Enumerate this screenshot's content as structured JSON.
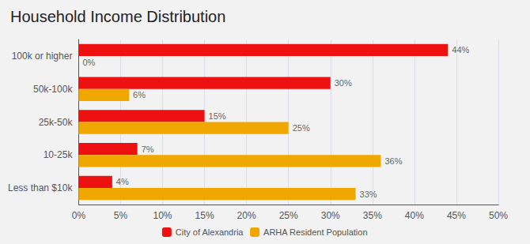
{
  "chart_data": {
    "type": "bar",
    "orientation": "horizontal",
    "title": "Household Income Distribution",
    "categories": [
      "Less than $10k",
      "10-25k",
      "25k-50k",
      "50k-100k",
      "100k or higher"
    ],
    "series": [
      {
        "name": "City of Alexandria",
        "color": "#ee1111",
        "values": [
          4,
          7,
          15,
          30,
          44
        ],
        "value_labels": [
          "4%",
          "7%",
          "15%",
          "30%",
          "44%"
        ]
      },
      {
        "name": "ARHA Resident Population",
        "color": "#f0a800",
        "values": [
          33,
          36,
          25,
          6,
          0
        ],
        "value_labels": [
          "33%",
          "36%",
          "25%",
          "6%",
          "0%"
        ]
      }
    ],
    "xlim": [
      0,
      50
    ],
    "xticks": [
      {
        "value": 0,
        "label": "0%"
      },
      {
        "value": 5,
        "label": "5%"
      },
      {
        "value": 10,
        "label": "10%"
      },
      {
        "value": 15,
        "label": "15%"
      },
      {
        "value": 20,
        "label": "20%"
      },
      {
        "value": 25,
        "label": "25%"
      },
      {
        "value": 30,
        "label": "30%"
      },
      {
        "value": 35,
        "label": "35%"
      },
      {
        "value": 40,
        "label": "40%"
      },
      {
        "value": 45,
        "label": "45%"
      },
      {
        "value": 50,
        "label": "50%"
      }
    ],
    "grid": true,
    "legend": "bottom",
    "data_labels": true
  }
}
